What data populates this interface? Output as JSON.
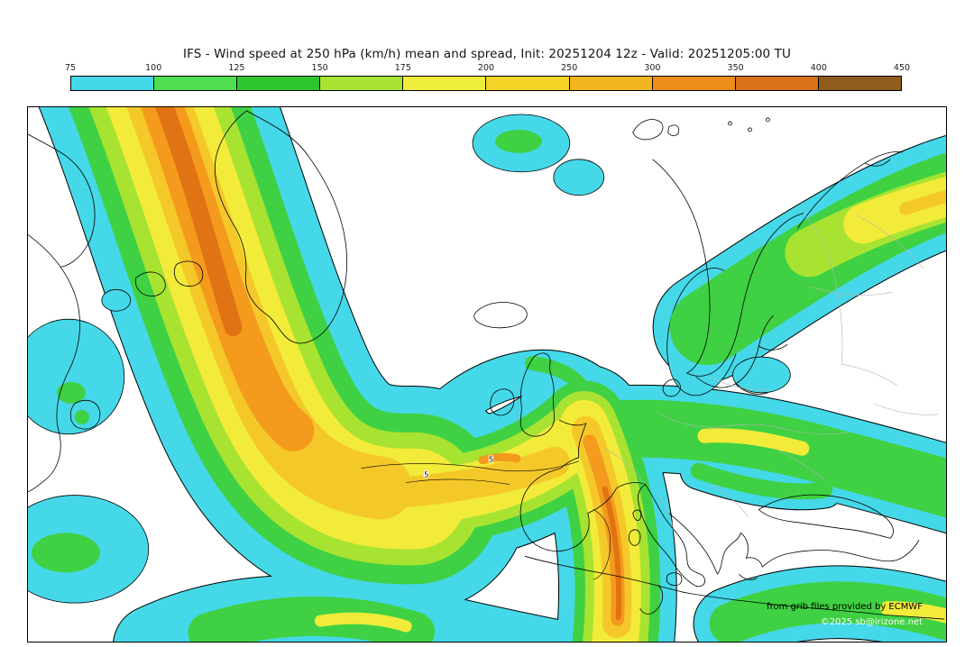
{
  "title": "IFS - Wind speed at 250 hPa (km/h) mean and spread, Init: 20251204 12z - Valid: 20251205:00 TU",
  "colorbar": {
    "ticks": [
      "75",
      "100",
      "125",
      "150",
      "175",
      "200",
      "250",
      "300",
      "350",
      "400",
      "450"
    ],
    "segment_colors": [
      "#45d8e8",
      "#4fde4f",
      "#2ec62e",
      "#a8e332",
      "#f0ee3c",
      "#f5d327",
      "#f0b51f",
      "#ee8d1c",
      "#d9701a",
      "#8f5c1c"
    ]
  },
  "palette": {
    "cyan": "#45d8e8",
    "green": "#3fd143",
    "yellow_green": "#a8e332",
    "yellow": "#f2eb3a",
    "gold": "#f5c829",
    "orange": "#f49a1c",
    "dark_orange": "#e07313",
    "border_gray": "#b5b5b5"
  },
  "map": {
    "contour_labels": [
      "5",
      "5"
    ],
    "credit_line1": "from grib files provided by ECMWF",
    "credit_line2": "©2025 sb@irizone.net"
  },
  "chart_data": {
    "type": "heatmap",
    "title": "IFS - Wind speed at 250 hPa (km/h) mean and spread, Init: 20251204 12z - Valid: 20251205:00 TU",
    "variable": "Wind speed at 250 hPa",
    "units": "km/h",
    "model": "IFS",
    "init": "20251204 12z",
    "valid": "20251205:00 TU",
    "colorbar_ticks": [
      75,
      100,
      125,
      150,
      175,
      200,
      250,
      300,
      350,
      400,
      450
    ],
    "legend_position": "top",
    "spread_contour_values": [
      5,
      5
    ]
  }
}
